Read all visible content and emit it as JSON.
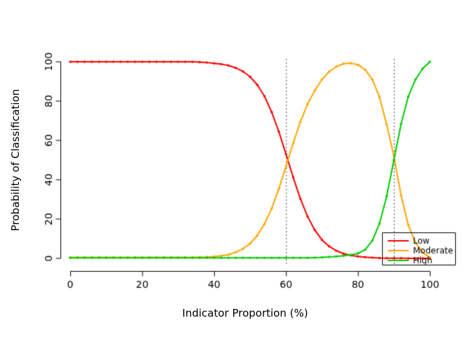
{
  "chart_data": {
    "type": "line",
    "title": "",
    "xlabel": "Indicator Proportion (%)",
    "ylabel": "Probability of Classification",
    "xlim": [
      0,
      100
    ],
    "ylim": [
      0,
      100
    ],
    "xticks": [
      0,
      20,
      40,
      60,
      80,
      100
    ],
    "yticks": [
      0,
      20,
      40,
      60,
      80,
      100
    ],
    "grid": false,
    "vlines": [
      60,
      90
    ],
    "vline_style": "dotted",
    "legend": {
      "position": "bottom-right",
      "entries": [
        "Low",
        "Moderate",
        "High"
      ]
    },
    "colors": {
      "low": "#ff0000",
      "moderate": "#ffa500",
      "high": "#00cc00",
      "axis": "#000000",
      "vline": "#404040"
    },
    "x": [
      0,
      2,
      4,
      6,
      8,
      10,
      12,
      14,
      16,
      18,
      20,
      22,
      24,
      26,
      28,
      30,
      32,
      34,
      36,
      38,
      40,
      42,
      44,
      46,
      48,
      50,
      52,
      54,
      56,
      58,
      60,
      62,
      64,
      66,
      68,
      70,
      72,
      74,
      76,
      78,
      80,
      82,
      84,
      86,
      88,
      90,
      92,
      94,
      96,
      98,
      100
    ],
    "series": [
      {
        "name": "Low",
        "color": "#ff0000",
        "values": [
          100,
          100,
          100,
          100,
          100,
          100,
          100,
          100,
          100,
          100,
          100,
          100,
          100,
          100,
          100,
          100,
          100,
          100,
          99.8,
          99.6,
          99.2,
          98.8,
          98.1,
          96.9,
          95.1,
          92.4,
          88.3,
          82.5,
          74.5,
          64.5,
          53,
          41.2,
          30.3,
          21.3,
          14.4,
          9.4,
          6.1,
          3.9,
          2.4,
          1.5,
          1,
          0.6,
          0.4,
          0.2,
          0.1,
          0.1,
          0.1,
          0,
          0,
          0,
          0
        ]
      },
      {
        "name": "Moderate",
        "color": "#ffa500",
        "values": [
          0.5,
          0.5,
          0.5,
          0.5,
          0.5,
          0.5,
          0.5,
          0.5,
          0.5,
          0.5,
          0.5,
          0.5,
          0.5,
          0.5,
          0.5,
          0.5,
          0.5,
          0.5,
          0.6,
          0.7,
          0.9,
          1.3,
          1.9,
          3.1,
          4.9,
          7.5,
          11.6,
          17.4,
          25.3,
          35.3,
          46.8,
          58.6,
          69.5,
          78.5,
          85.4,
          91,
          95,
          97.5,
          99,
          99.3,
          98.5,
          96,
          91,
          82,
          68,
          52,
          32,
          17,
          8,
          3,
          0.5
        ]
      },
      {
        "name": "High",
        "color": "#00cc00",
        "values": [
          0.3,
          0.3,
          0.3,
          0.3,
          0.3,
          0.3,
          0.3,
          0.3,
          0.3,
          0.3,
          0.3,
          0.3,
          0.3,
          0.3,
          0.3,
          0.3,
          0.3,
          0.3,
          0.3,
          0.3,
          0.3,
          0.3,
          0.3,
          0.3,
          0.3,
          0.3,
          0.3,
          0.3,
          0.3,
          0.3,
          0.3,
          0.3,
          0.3,
          0.3,
          0.4,
          0.5,
          0.7,
          1,
          1.3,
          1.8,
          2.5,
          4.4,
          9,
          17.7,
          31.7,
          50,
          68.4,
          82.3,
          91,
          96.5,
          100
        ]
      }
    ]
  }
}
